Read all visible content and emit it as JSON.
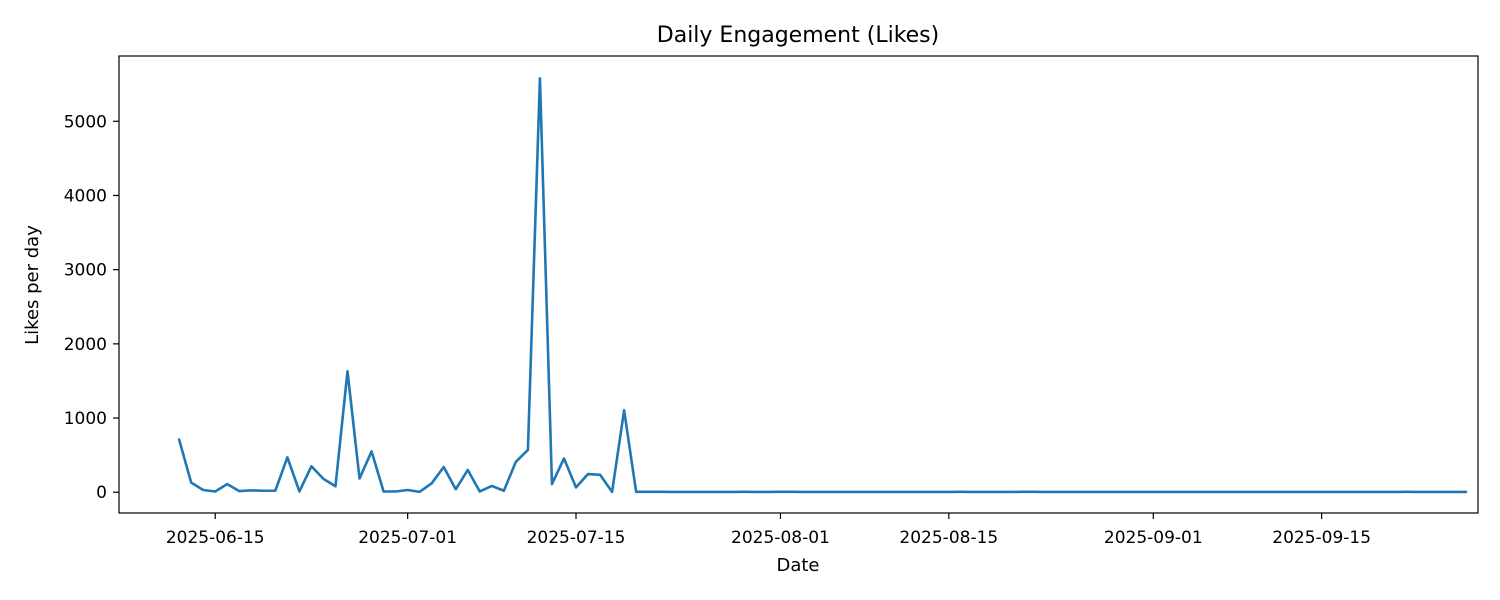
{
  "chart_data": {
    "type": "line",
    "title": "Daily Engagement (Likes)",
    "xlabel": "Date",
    "ylabel": "Likes per day",
    "grid": false,
    "line_color": "#1f77b4",
    "x_range": [
      "2025-06-07",
      "2025-09-28"
    ],
    "ylim": [
      -280,
      5880
    ],
    "x_ticks": [
      {
        "date": "2025-06-15",
        "label": "2025-06-15"
      },
      {
        "date": "2025-07-01",
        "label": "2025-07-01"
      },
      {
        "date": "2025-07-15",
        "label": "2025-07-15"
      },
      {
        "date": "2025-08-01",
        "label": "2025-08-01"
      },
      {
        "date": "2025-08-15",
        "label": "2025-08-15"
      },
      {
        "date": "2025-09-01",
        "label": "2025-09-01"
      },
      {
        "date": "2025-09-15",
        "label": "2025-09-15"
      }
    ],
    "y_ticks": [
      {
        "value": 0,
        "label": "0"
      },
      {
        "value": 1000,
        "label": "1000"
      },
      {
        "value": 2000,
        "label": "2000"
      },
      {
        "value": 3000,
        "label": "3000"
      },
      {
        "value": 4000,
        "label": "4000"
      },
      {
        "value": 5000,
        "label": "5000"
      }
    ],
    "series": [
      {
        "points": [
          [
            "2025-06-12",
            710
          ],
          [
            "2025-06-13",
            130
          ],
          [
            "2025-06-14",
            30
          ],
          [
            "2025-06-15",
            10
          ],
          [
            "2025-06-16",
            110
          ],
          [
            "2025-06-17",
            15
          ],
          [
            "2025-06-18",
            25
          ],
          [
            "2025-06-19",
            20
          ],
          [
            "2025-06-20",
            20
          ],
          [
            "2025-06-21",
            470
          ],
          [
            "2025-06-22",
            10
          ],
          [
            "2025-06-23",
            350
          ],
          [
            "2025-06-24",
            180
          ],
          [
            "2025-06-25",
            80
          ],
          [
            "2025-06-26",
            1630
          ],
          [
            "2025-06-27",
            185
          ],
          [
            "2025-06-28",
            550
          ],
          [
            "2025-06-29",
            10
          ],
          [
            "2025-06-30",
            10
          ],
          [
            "2025-07-01",
            30
          ],
          [
            "2025-07-02",
            5
          ],
          [
            "2025-07-03",
            120
          ],
          [
            "2025-07-04",
            340
          ],
          [
            "2025-07-05",
            40
          ],
          [
            "2025-07-06",
            300
          ],
          [
            "2025-07-07",
            10
          ],
          [
            "2025-07-08",
            85
          ],
          [
            "2025-07-09",
            20
          ],
          [
            "2025-07-10",
            410
          ],
          [
            "2025-07-11",
            570
          ],
          [
            "2025-07-12",
            5580
          ],
          [
            "2025-07-13",
            110
          ],
          [
            "2025-07-14",
            455
          ],
          [
            "2025-07-15",
            65
          ],
          [
            "2025-07-16",
            245
          ],
          [
            "2025-07-17",
            235
          ],
          [
            "2025-07-18",
            5
          ],
          [
            "2025-07-19",
            1105
          ],
          [
            "2025-07-20",
            5
          ],
          [
            "2025-07-21",
            5
          ],
          [
            "2025-07-22",
            6
          ],
          [
            "2025-07-23",
            4
          ],
          [
            "2025-07-24",
            4
          ],
          [
            "2025-07-25",
            4
          ],
          [
            "2025-07-26",
            4
          ],
          [
            "2025-07-27",
            4
          ],
          [
            "2025-07-28",
            4
          ],
          [
            "2025-07-29",
            5
          ],
          [
            "2025-07-30",
            4
          ],
          [
            "2025-07-31",
            4
          ],
          [
            "2025-08-01",
            5
          ],
          [
            "2025-08-02",
            5
          ],
          [
            "2025-08-03",
            4
          ],
          [
            "2025-08-04",
            4
          ],
          [
            "2025-08-05",
            4
          ],
          [
            "2025-08-06",
            4
          ],
          [
            "2025-08-07",
            4
          ],
          [
            "2025-08-08",
            4
          ],
          [
            "2025-08-09",
            4
          ],
          [
            "2025-08-10",
            4
          ],
          [
            "2025-08-11",
            4
          ],
          [
            "2025-08-12",
            4
          ],
          [
            "2025-08-13",
            4
          ],
          [
            "2025-08-14",
            4
          ],
          [
            "2025-08-15",
            4
          ],
          [
            "2025-08-16",
            5
          ],
          [
            "2025-08-17",
            4
          ],
          [
            "2025-08-18",
            4
          ],
          [
            "2025-08-19",
            4
          ],
          [
            "2025-08-20",
            4
          ],
          [
            "2025-08-21",
            5
          ],
          [
            "2025-08-22",
            5
          ],
          [
            "2025-08-23",
            4
          ],
          [
            "2025-08-24",
            4
          ],
          [
            "2025-08-25",
            4
          ],
          [
            "2025-08-26",
            4
          ],
          [
            "2025-08-27",
            4
          ],
          [
            "2025-08-28",
            4
          ],
          [
            "2025-08-29",
            4
          ],
          [
            "2025-08-30",
            4
          ],
          [
            "2025-08-31",
            4
          ],
          [
            "2025-09-01",
            4
          ],
          [
            "2025-09-02",
            4
          ],
          [
            "2025-09-03",
            4
          ],
          [
            "2025-09-04",
            4
          ],
          [
            "2025-09-05",
            4
          ],
          [
            "2025-09-06",
            4
          ],
          [
            "2025-09-07",
            4
          ],
          [
            "2025-09-08",
            4
          ],
          [
            "2025-09-09",
            4
          ],
          [
            "2025-09-10",
            4
          ],
          [
            "2025-09-11",
            4
          ],
          [
            "2025-09-12",
            4
          ],
          [
            "2025-09-13",
            4
          ],
          [
            "2025-09-14",
            4
          ],
          [
            "2025-09-15",
            4
          ],
          [
            "2025-09-16",
            4
          ],
          [
            "2025-09-17",
            4
          ],
          [
            "2025-09-18",
            4
          ],
          [
            "2025-09-19",
            4
          ],
          [
            "2025-09-20",
            4
          ],
          [
            "2025-09-21",
            4
          ],
          [
            "2025-09-22",
            5
          ],
          [
            "2025-09-23",
            4
          ],
          [
            "2025-09-24",
            4
          ],
          [
            "2025-09-25",
            4
          ],
          [
            "2025-09-26",
            4
          ],
          [
            "2025-09-27",
            4
          ]
        ]
      }
    ]
  }
}
